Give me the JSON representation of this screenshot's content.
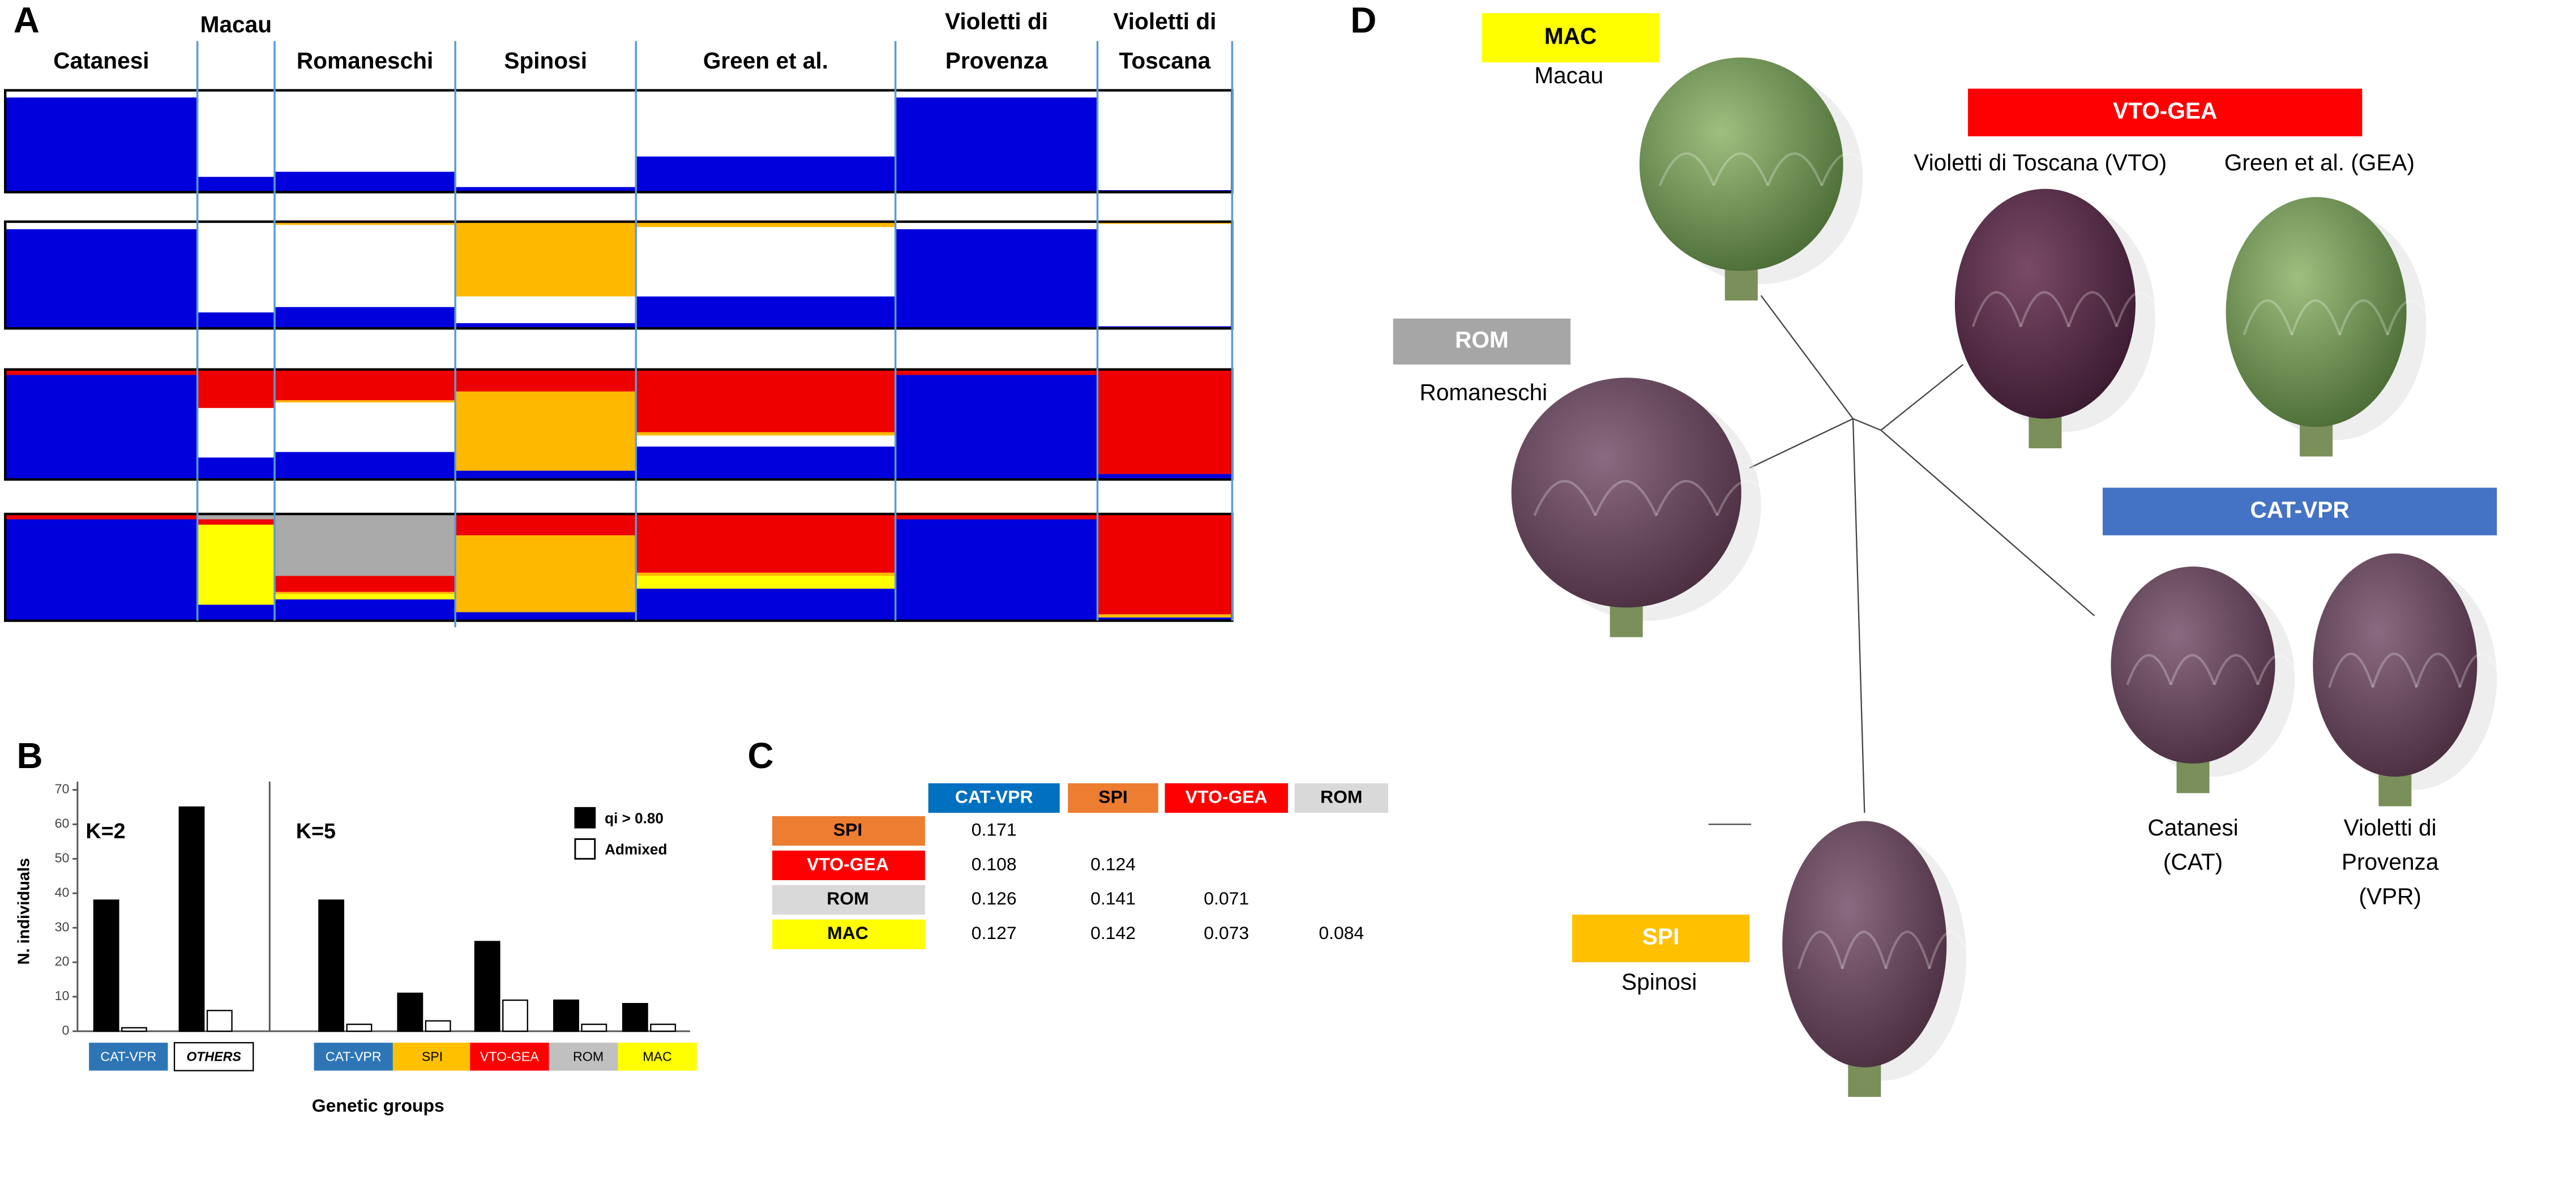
{
  "panel_labels": {
    "a": "A",
    "b": "B",
    "c": "C",
    "d": "D"
  },
  "structure": {
    "groups": [
      [
        "Catanesi"
      ],
      [
        "Macau"
      ],
      [
        "Romaneschi"
      ],
      [
        "Spinosi"
      ],
      [
        "Green et al."
      ],
      [
        "Violetti di",
        "Provenza"
      ],
      [
        "Violetti di",
        "Toscana"
      ]
    ],
    "rows": [
      {
        "colors": [
          "#0000dd",
          "#ffffff"
        ],
        "groups": [
          [
            0.93,
            0.07
          ],
          [
            0.15,
            0.85
          ],
          [
            0.2,
            0.8
          ],
          [
            0.05,
            0.95
          ],
          [
            0.35,
            0.65
          ],
          [
            0.93,
            0.07
          ],
          [
            0.02,
            0.98
          ]
        ]
      },
      {
        "colors": [
          "#0000dd",
          "#ffffff",
          "#ffb800"
        ],
        "groups": [
          [
            0.93,
            0.07,
            0
          ],
          [
            0.15,
            0.85,
            0
          ],
          [
            0.2,
            0.77,
            0.03
          ],
          [
            0.05,
            0.25,
            0.7
          ],
          [
            0.3,
            0.65,
            0.05
          ],
          [
            0.93,
            0.07,
            0
          ],
          [
            0.02,
            0.96,
            0.02
          ]
        ]
      },
      {
        "colors": [
          "#0000dd",
          "#ffffff",
          "#ffb800",
          "#ee0000"
        ],
        "groups": [
          [
            0.95,
            0,
            0,
            0.05
          ],
          [
            0.2,
            0.45,
            0,
            0.35
          ],
          [
            0.25,
            0.45,
            0.02,
            0.28
          ],
          [
            0.08,
            0,
            0.72,
            0.2
          ],
          [
            0.3,
            0.1,
            0.03,
            0.57
          ],
          [
            0.95,
            0,
            0,
            0.05
          ],
          [
            0.05,
            0,
            0,
            0.95
          ]
        ]
      },
      {
        "colors": [
          "#0000dd",
          "#ffff00",
          "#ffb800",
          "#ee0000",
          "#aaaaaa"
        ],
        "groups": [
          [
            0.95,
            0,
            0,
            0.05,
            0
          ],
          [
            0.15,
            0.75,
            0,
            0.05,
            0.05
          ],
          [
            0.2,
            0.05,
            0.02,
            0.15,
            0.58
          ],
          [
            0.08,
            0,
            0.72,
            0.2,
            0
          ],
          [
            0.3,
            0.12,
            0.03,
            0.55,
            0
          ],
          [
            0.95,
            0,
            0,
            0.05,
            0
          ],
          [
            0.03,
            0,
            0.03,
            0.94,
            0
          ]
        ]
      }
    ]
  },
  "chart_data": {
    "type": "bar",
    "y_label": "N. individuals",
    "x_label": "Genetic groups",
    "ylim": [
      0,
      70
    ],
    "yticks": [
      0,
      10,
      20,
      30,
      40,
      50,
      60,
      70
    ],
    "legend": [
      "qi > 0.80",
      "Admixed"
    ],
    "series_colors": [
      "#000000",
      "#ffffff"
    ],
    "panels": [
      {
        "label": "K=2",
        "categories": [
          "CAT-VPR",
          "OTHERS"
        ],
        "category_colors": [
          "#2e75b6",
          "#ffffff"
        ],
        "series": [
          {
            "name": "qi > 0.80",
            "values": [
              38,
              65
            ]
          },
          {
            "name": "Admixed",
            "values": [
              1,
              6
            ]
          }
        ]
      },
      {
        "label": "K=5",
        "categories": [
          "CAT-VPR",
          "SPI",
          "VTO-GEA",
          "ROM",
          "MAC"
        ],
        "category_colors": [
          "#2e75b6",
          "#ffc000",
          "#ff0000",
          "#c0c0c0",
          "#ffff00"
        ],
        "series": [
          {
            "name": "qi > 0.80",
            "values": [
              38,
              11,
              26,
              9,
              8
            ]
          },
          {
            "name": "Admixed",
            "values": [
              2,
              3,
              9,
              2,
              2
            ]
          }
        ]
      }
    ]
  },
  "table": {
    "columns": [
      {
        "label": "CAT-VPR",
        "color": "#0070c0"
      },
      {
        "label": "SPI",
        "color": "#ed7d31"
      },
      {
        "label": "VTO-GEA",
        "color": "#ff0000"
      },
      {
        "label": "ROM",
        "color": "#d9d9d9"
      }
    ],
    "rows": [
      {
        "label": "SPI",
        "color": "#ed7d31",
        "values": [
          "0.171"
        ]
      },
      {
        "label": "VTO-GEA",
        "color": "#ff0000",
        "values": [
          "0.108",
          "0.124"
        ]
      },
      {
        "label": "ROM",
        "color": "#d9d9d9",
        "values": [
          "0.126",
          "0.141",
          "0.071"
        ]
      },
      {
        "label": "MAC",
        "color": "#ffff00",
        "values": [
          "0.127",
          "0.142",
          "0.073",
          "0.084"
        ]
      }
    ]
  },
  "tree": {
    "groups": [
      {
        "label": "MAC",
        "color": "#ffff00",
        "names": [
          [
            "Macau"
          ]
        ]
      },
      {
        "label": "VTO-GEA",
        "color": "#ff0000",
        "names": [
          [
            "Violetti di Toscana (VTO)"
          ],
          [
            "Green et al. (GEA)"
          ]
        ]
      },
      {
        "label": "ROM",
        "color": "#a6a6a6",
        "names": [
          [
            "Romaneschi"
          ]
        ]
      },
      {
        "label": "CAT-VPR",
        "color": "#4472c4",
        "names": [
          [
            "Catanesi",
            "(CAT)"
          ],
          [
            "Violetti di",
            "Provenza",
            "(VPR)"
          ]
        ]
      },
      {
        "label": "SPI",
        "color": "#ffc000",
        "names": [
          [
            "Spinosi"
          ]
        ]
      }
    ]
  }
}
